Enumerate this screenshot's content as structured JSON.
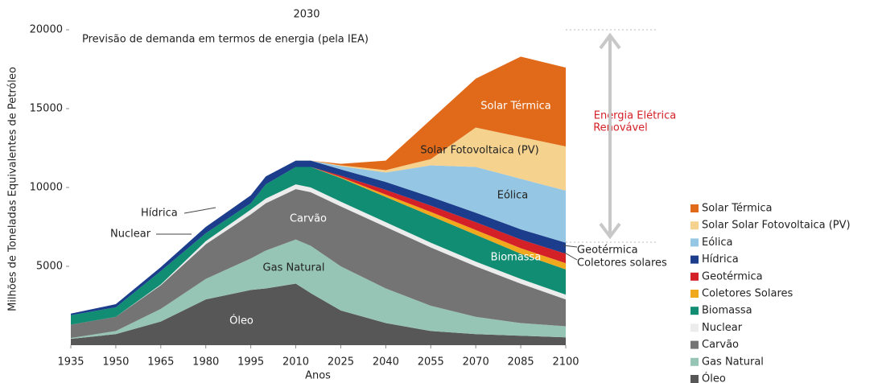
{
  "chart_data": {
    "type": "stacked_area",
    "title": "2030",
    "subtitle": "Previsão de demanda em termos de energia (pela IEA)",
    "x_label": "Anos",
    "y_label": "Milhões de Toneladas Equivalentes de Petróleo",
    "renewable_label": [
      "Energia Elétrica",
      "Renovável"
    ],
    "area_labels": [
      "Solar Térmica",
      "Solar Fotovoltaica (PV)",
      "Eólica",
      "Biomassa",
      "Carvão",
      "Gas Natural",
      "Óleo",
      "Hídrica",
      "Nuclear",
      "Geotérmica",
      "Coletores solares"
    ],
    "x": [
      1935,
      1950,
      1965,
      1980,
      1995,
      2000,
      2010,
      2015,
      2025,
      2040,
      2055,
      2070,
      2085,
      2100
    ],
    "xlim": [
      1935,
      2100
    ],
    "xticks": [
      1935,
      1950,
      1965,
      1980,
      1995,
      2010,
      2025,
      2040,
      2055,
      2070,
      2085,
      2100
    ],
    "ylim": [
      0,
      20000
    ],
    "yticks": [
      5000,
      10000,
      15000,
      20000
    ],
    "series": [
      {
        "name": "Óleo",
        "color": "#575757",
        "values": [
          400,
          700,
          1500,
          2900,
          3500,
          3600,
          3900,
          3300,
          2200,
          1400,
          900,
          700,
          600,
          500
        ]
      },
      {
        "name": "Gas Natural",
        "color": "#96c4b5",
        "values": [
          50,
          200,
          800,
          1300,
          2000,
          2400,
          2800,
          3000,
          2800,
          2200,
          1600,
          1100,
          800,
          700
        ]
      },
      {
        "name": "Carvão",
        "color": "#747474",
        "values": [
          850,
          900,
          1500,
          2200,
          2800,
          3000,
          3200,
          3400,
          3800,
          3900,
          3700,
          3200,
          2500,
          1700
        ]
      },
      {
        "name": "Nuclear",
        "color": "#ececec",
        "values": [
          0,
          0,
          50,
          200,
          300,
          300,
          300,
          300,
          300,
          300,
          300,
          300,
          300,
          300
        ]
      },
      {
        "name": "Biomassa",
        "color": "#118d73",
        "values": [
          600,
          600,
          850,
          500,
          400,
          900,
          1100,
          1300,
          1500,
          1600,
          1700,
          1700,
          1600,
          1600
        ]
      },
      {
        "name": "Coletores Solares",
        "color": "#f0a81c",
        "values": [
          0,
          0,
          0,
          0,
          0,
          0,
          0,
          0,
          50,
          150,
          250,
          300,
          350,
          400
        ]
      },
      {
        "name": "Geotérmica",
        "color": "#d42027",
        "values": [
          0,
          0,
          0,
          0,
          0,
          0,
          0,
          0,
          100,
          300,
          400,
          500,
          550,
          600
        ]
      },
      {
        "name": "Hídrica",
        "color": "#1b3d8b",
        "values": [
          100,
          200,
          250,
          400,
          500,
          500,
          400,
          400,
          400,
          500,
          550,
          600,
          650,
          700
        ]
      },
      {
        "name": "Eólica",
        "color": "#95c6e3",
        "values": [
          0,
          0,
          0,
          0,
          0,
          0,
          0,
          0,
          200,
          600,
          2000,
          2900,
          3200,
          3300
        ]
      },
      {
        "name": "Solar Solar Fotovoltaica (PV)",
        "color": "#f6d28f",
        "values": [
          0,
          0,
          0,
          0,
          0,
          0,
          0,
          0,
          50,
          150,
          400,
          2500,
          2650,
          2800
        ]
      },
      {
        "name": "Solar Térmica",
        "color": "#e06a1a",
        "values": [
          0,
          0,
          0,
          0,
          0,
          0,
          0,
          0,
          100,
          600,
          2500,
          3100,
          5100,
          5000
        ]
      }
    ]
  }
}
